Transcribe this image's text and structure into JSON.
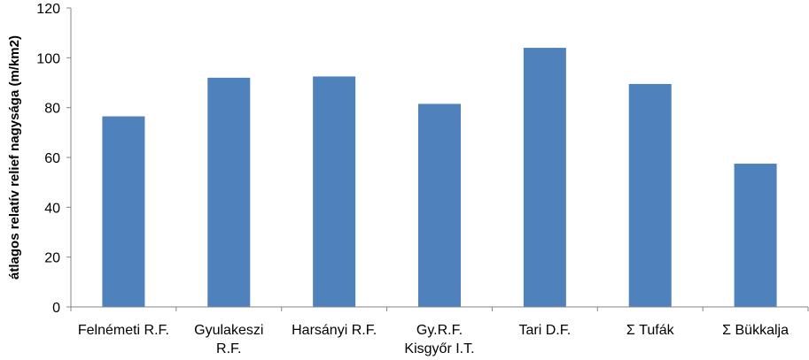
{
  "chart_data": {
    "type": "bar",
    "title": "",
    "xlabel": "",
    "ylabel": "átlagos relatív relief nagysága (m/km2)",
    "ylim": [
      0,
      120
    ],
    "yticks": [
      "0",
      "20",
      "40",
      "60",
      "80",
      "100",
      "120"
    ],
    "grid": "none",
    "legend": "none",
    "bar_color": "#4f81bd",
    "categories": [
      [
        "Felnémeti R.F."
      ],
      [
        "Gyulakeszi",
        "R.F."
      ],
      [
        "Harsányi R.F."
      ],
      [
        "Gy.R.F.",
        "Kisgyőr I.T."
      ],
      [
        "Tari D.F."
      ],
      [
        "Σ Tufák"
      ],
      [
        "Σ Bükkalja"
      ]
    ],
    "values": [
      76.5,
      92,
      92.5,
      81.5,
      104,
      89.5,
      57.5
    ]
  }
}
